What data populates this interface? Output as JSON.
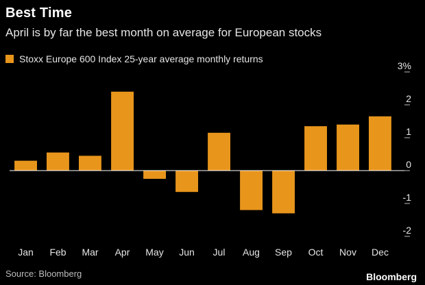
{
  "header": {
    "title": "Best Time",
    "subtitle": "April is by far the best month on average for European stocks"
  },
  "legend": {
    "label": "Stoxx Europe 600 Index 25-year average monthly returns",
    "color": "#e8951c"
  },
  "footer": {
    "source": "Source: Bloomberg",
    "brand": "Bloomberg"
  },
  "chart_data": {
    "type": "bar",
    "categories": [
      "Jan",
      "Feb",
      "Mar",
      "Apr",
      "May",
      "Jun",
      "Jul",
      "Aug",
      "Sep",
      "Oct",
      "Nov",
      "Dec"
    ],
    "series": [
      {
        "name": "Stoxx Europe 600 Index 25-year average monthly returns",
        "values": [
          0.3,
          0.55,
          0.45,
          2.4,
          -0.25,
          -0.65,
          1.15,
          -1.2,
          -1.3,
          1.35,
          1.4,
          1.65
        ]
      }
    ],
    "ylim": [
      -2,
      3
    ],
    "yticks": [
      3,
      2,
      1,
      0,
      -1,
      -2
    ],
    "ytick_labels": [
      "3%",
      "2",
      "1",
      "0",
      "-1",
      "-2"
    ],
    "axis_side": "right",
    "bar_color": "#e8951c",
    "zero_line_color": "#ffffff",
    "grid": false
  }
}
